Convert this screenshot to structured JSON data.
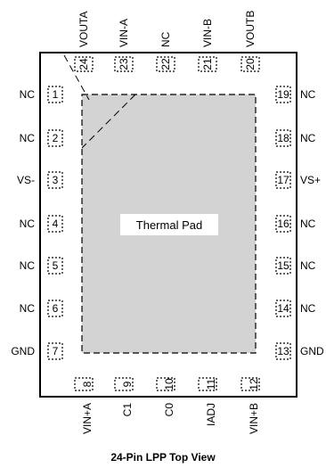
{
  "title": "24-Pin LPP Top View",
  "center_label": "Thermal Pad",
  "pins": [
    {
      "num": "1",
      "name": "NC"
    },
    {
      "num": "2",
      "name": "NC"
    },
    {
      "num": "3",
      "name": "VS-"
    },
    {
      "num": "4",
      "name": "NC"
    },
    {
      "num": "5",
      "name": "NC"
    },
    {
      "num": "6",
      "name": "NC"
    },
    {
      "num": "7",
      "name": "GND"
    },
    {
      "num": "8",
      "name": "VIN+A"
    },
    {
      "num": "9",
      "name": "C1"
    },
    {
      "num": "10",
      "name": "C0"
    },
    {
      "num": "11",
      "name": "IADJ"
    },
    {
      "num": "12",
      "name": "VIN+B"
    },
    {
      "num": "13",
      "name": "GND"
    },
    {
      "num": "14",
      "name": "NC"
    },
    {
      "num": "15",
      "name": "NC"
    },
    {
      "num": "16",
      "name": "NC"
    },
    {
      "num": "17",
      "name": "VS+"
    },
    {
      "num": "18",
      "name": "NC"
    },
    {
      "num": "19",
      "name": "NC"
    },
    {
      "num": "20",
      "name": "VOUTB"
    },
    {
      "num": "21",
      "name": "VIN-B"
    },
    {
      "num": "22",
      "name": "NC"
    },
    {
      "num": "23",
      "name": "VIN-A"
    },
    {
      "num": "24",
      "name": "VOUTA"
    }
  ]
}
